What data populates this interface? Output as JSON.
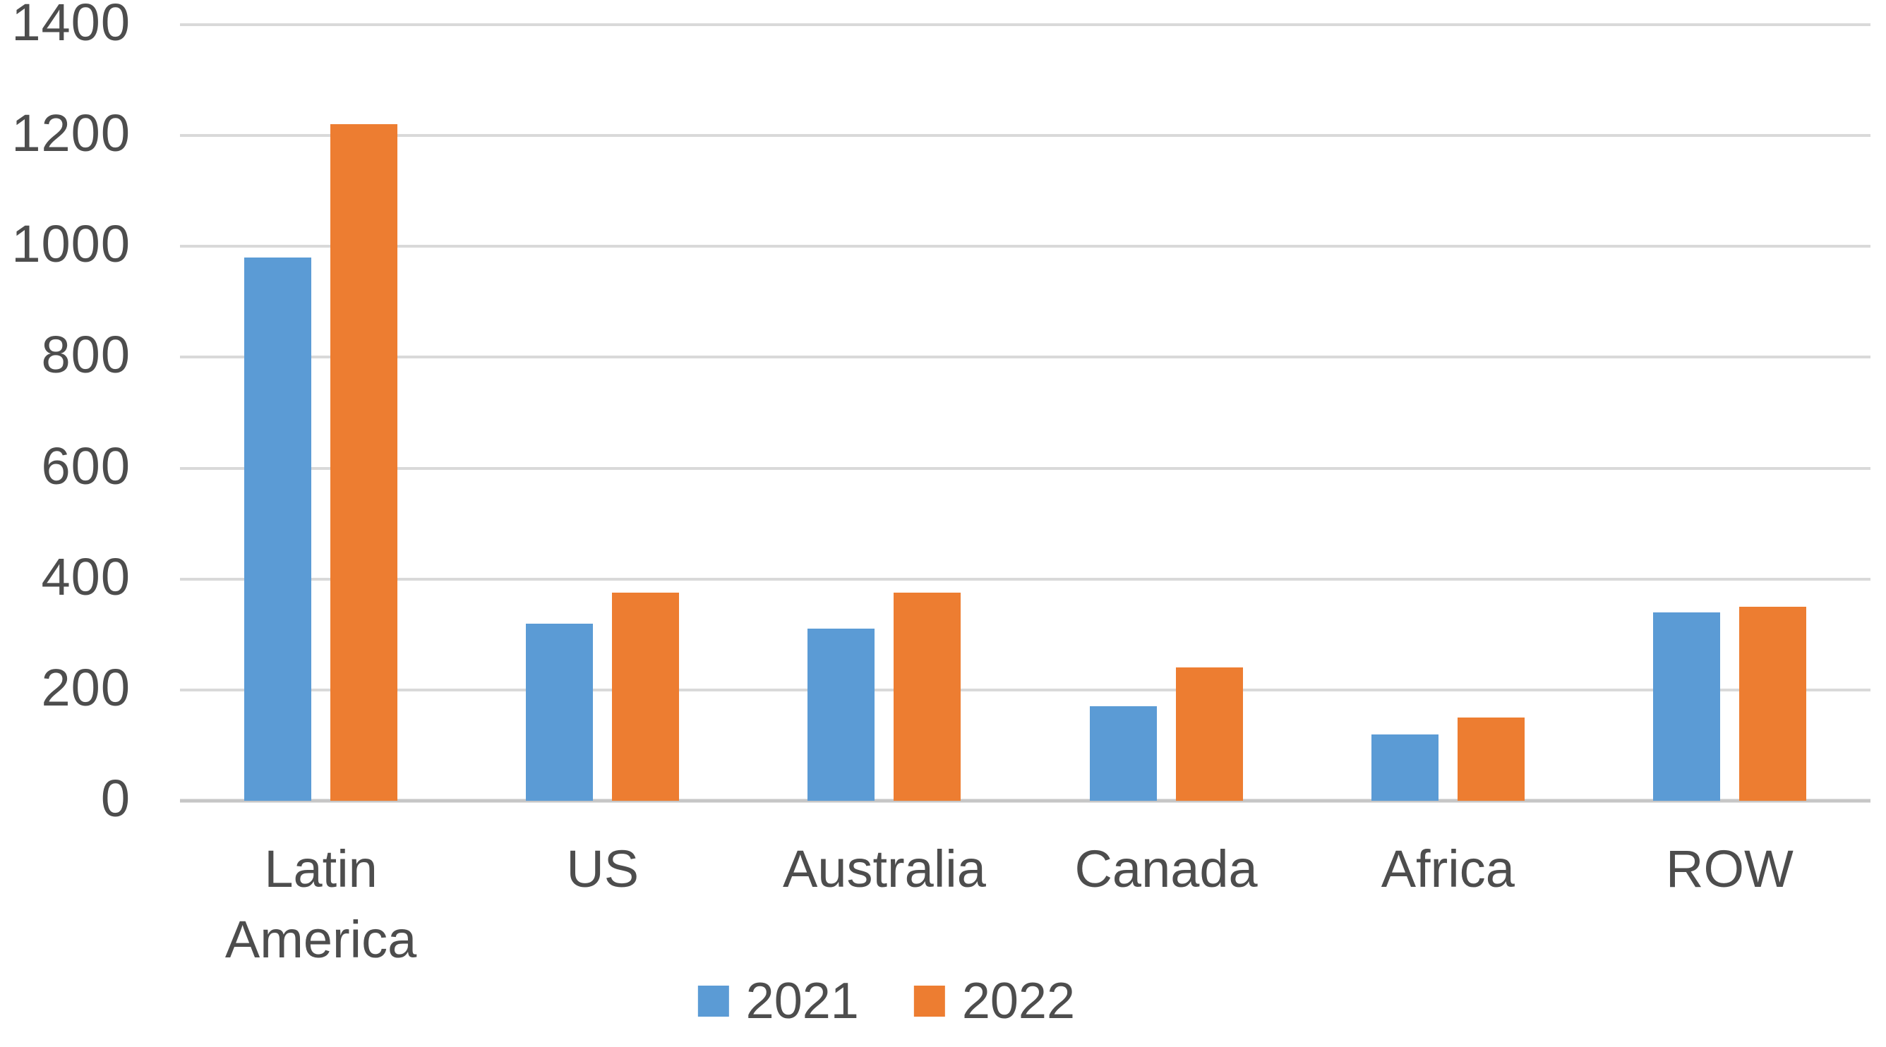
{
  "chart_data": {
    "type": "bar",
    "categories": [
      "Latin America",
      "US",
      "Australia",
      "Canada",
      "Africa",
      "ROW"
    ],
    "series": [
      {
        "name": "2021",
        "color": "#5B9BD5",
        "values": [
          980,
          320,
          310,
          170,
          120,
          340
        ]
      },
      {
        "name": "2022",
        "color": "#ED7D31",
        "values": [
          1220,
          375,
          375,
          240,
          150,
          350
        ]
      }
    ],
    "title": "",
    "xlabel": "",
    "ylabel": "",
    "ylim": [
      0,
      1400
    ],
    "yticks": [
      0,
      200,
      400,
      600,
      800,
      1000,
      1200,
      1400
    ],
    "grid": true,
    "legend_position": "bottom"
  },
  "legend": {
    "items": [
      {
        "label": "2021",
        "color": "#5B9BD5"
      },
      {
        "label": "2022",
        "color": "#ED7D31"
      }
    ]
  },
  "colors": {
    "background": "#FFFFFF",
    "gridline": "#D9D9D9",
    "axis_line": "#C6C6C6",
    "text": "#4D4D4D",
    "series_2021": "#5B9BD5",
    "series_2022": "#ED7D31"
  }
}
